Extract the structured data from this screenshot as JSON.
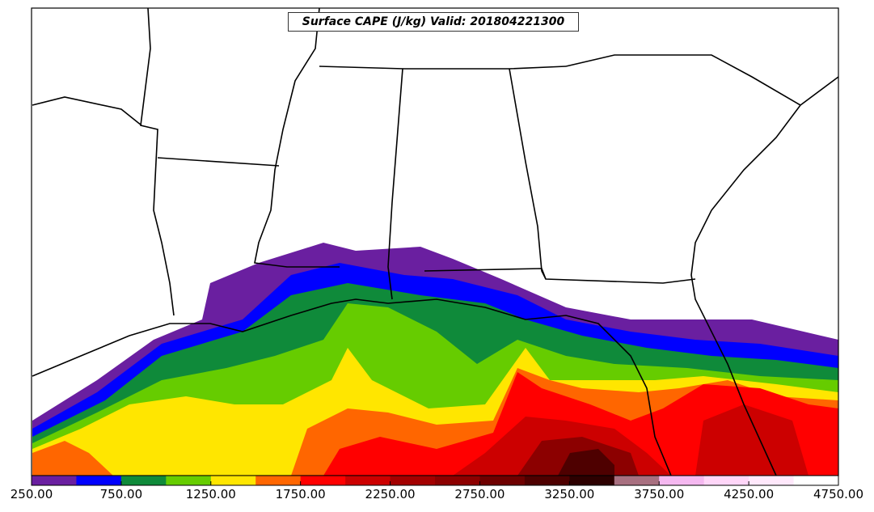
{
  "title": "Surface CAPE (J/kg) Valid: 201804221300",
  "colorbar": {
    "tick_labels": [
      "250.00",
      "750.00",
      "1250.00",
      "1750.00",
      "2250.00",
      "2750.00",
      "3250.00",
      "3750.00",
      "4250.00",
      "4750.00"
    ],
    "min": 250,
    "max": 4750,
    "interval": 250,
    "colors": [
      "#6a1fa0",
      "#0000ff",
      "#0f8a3a",
      "#66cc00",
      "#ffe600",
      "#ff6600",
      "#ff0000",
      "#cc0000",
      "#a30000",
      "#8c0000",
      "#6e0000",
      "#4e0000",
      "#2d0000",
      "#a87080",
      "#f5b8f0",
      "#ffd6f8",
      "#ffe8fb",
      "#ffffff"
    ]
  },
  "map_layers": {
    "basemap": "state and coastline boundaries",
    "field": "surface CAPE shaded contours"
  }
}
